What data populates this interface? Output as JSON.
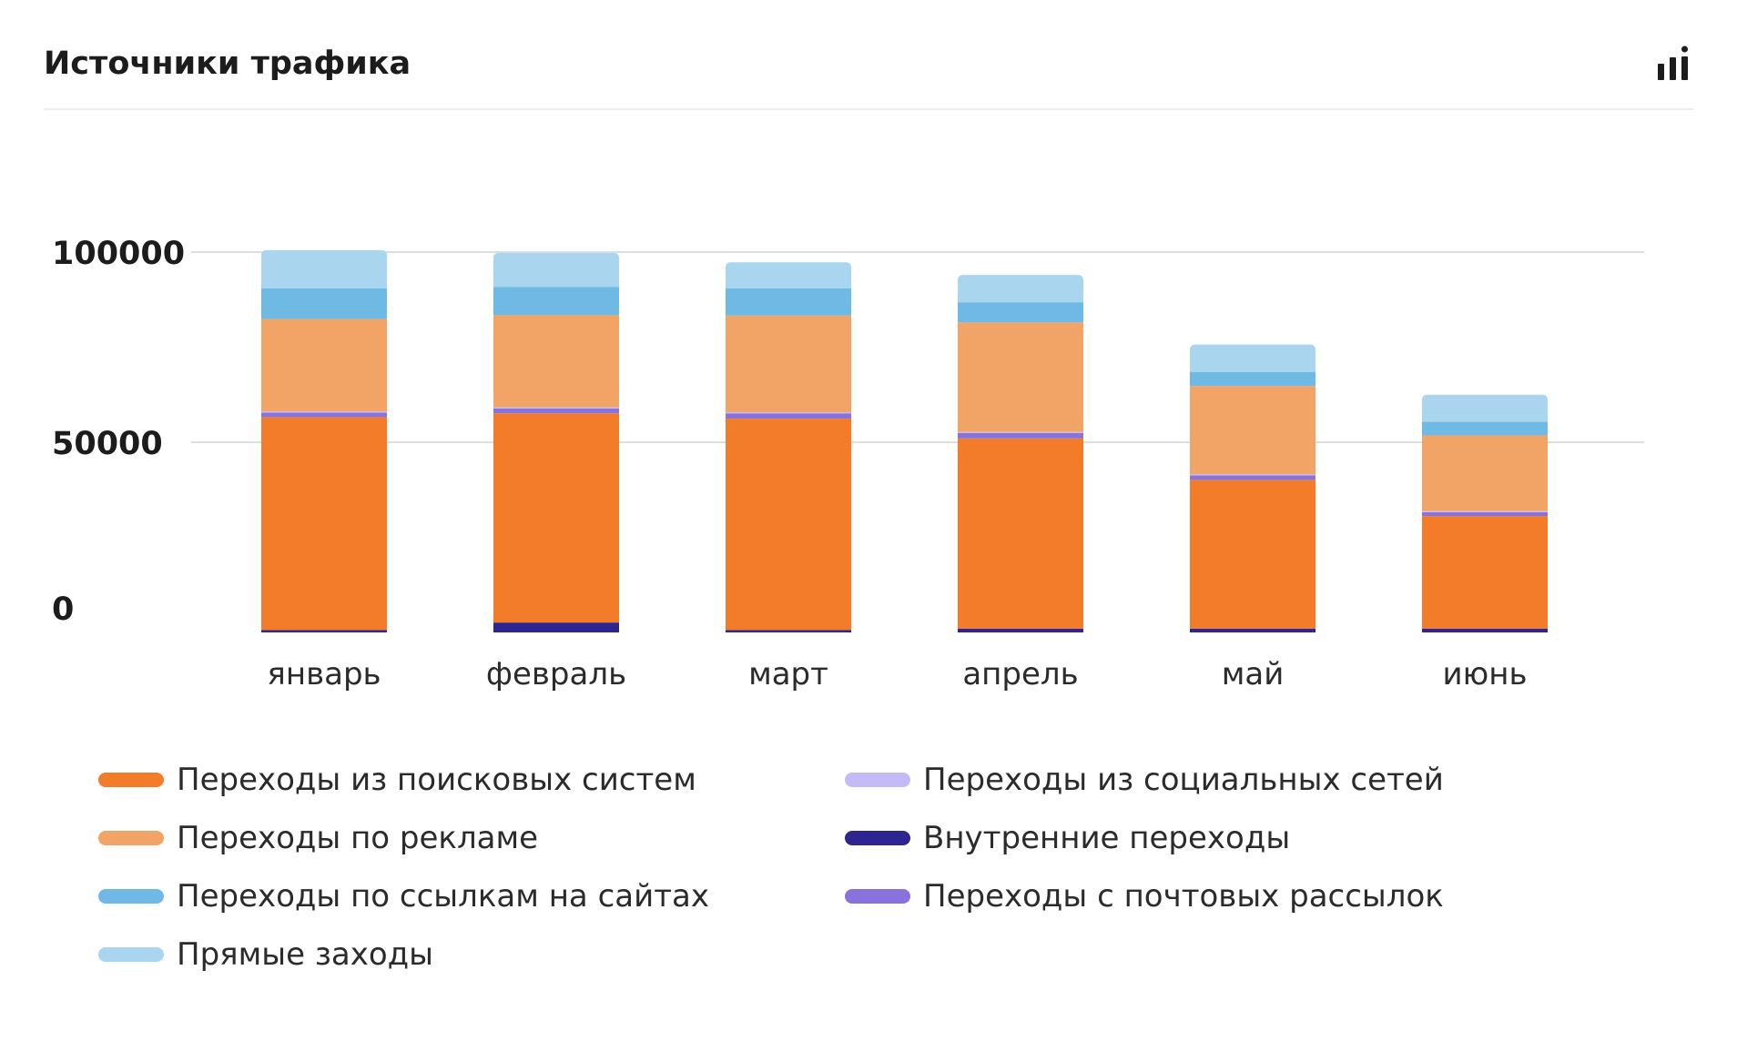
{
  "header": {
    "title": "Источники трафика",
    "icon": "bar-chart-icon"
  },
  "chart_data": {
    "type": "bar",
    "stacked": true,
    "title": "Источники трафика",
    "xlabel": "",
    "ylabel": "",
    "categories": [
      "январь",
      "февраль",
      "март",
      "апрель",
      "май",
      "июнь"
    ],
    "yticks": [
      "0",
      "50000",
      "100000"
    ],
    "ylim": [
      0,
      100000
    ],
    "grid": true,
    "legend_position": "bottom",
    "series": [
      {
        "name": "Внутренние переходы",
        "color": "#2e2590",
        "values": [
          600,
          2600,
          600,
          1000,
          1000,
          1000
        ]
      },
      {
        "name": "Переходы из поисковых систем",
        "color": "#f27c2a",
        "values": [
          56000,
          55000,
          55600,
          50000,
          39100,
          29600
        ]
      },
      {
        "name": "Переходы с почтовых рассылок",
        "color": "#8a72dc",
        "values": [
          1200,
          1300,
          1400,
          1400,
          1200,
          1000
        ]
      },
      {
        "name": "Переходы из социальных сетей",
        "color": "#c4baf7",
        "values": [
          300,
          300,
          300,
          300,
          300,
          300
        ]
      },
      {
        "name": "Переходы по рекламе",
        "color": "#f2a366",
        "values": [
          24300,
          24200,
          25400,
          28800,
          23200,
          19900
        ]
      },
      {
        "name": "Переходы по ссылкам на сайтах",
        "color": "#6ebae4",
        "values": [
          8100,
          7400,
          7200,
          5300,
          3700,
          3600
        ]
      },
      {
        "name": "Прямые заходы",
        "color": "#a9d6ee",
        "values": [
          10000,
          9000,
          6800,
          7200,
          7200,
          7100
        ]
      }
    ]
  },
  "legend": [
    {
      "label": "Переходы из поисковых систем",
      "color": "#f27c2a"
    },
    {
      "label": "Переходы по рекламе",
      "color": "#f2a366"
    },
    {
      "label": "Переходы по ссылкам на сайтах",
      "color": "#6ebae4"
    },
    {
      "label": "Прямые заходы",
      "color": "#a9d6ee"
    },
    {
      "label": "Переходы из социальных сетей",
      "color": "#c4baf7"
    },
    {
      "label": "Внутренние переходы",
      "color": "#2e2590"
    },
    {
      "label": "Переходы с почтовых рассылок",
      "color": "#8a72dc"
    }
  ]
}
